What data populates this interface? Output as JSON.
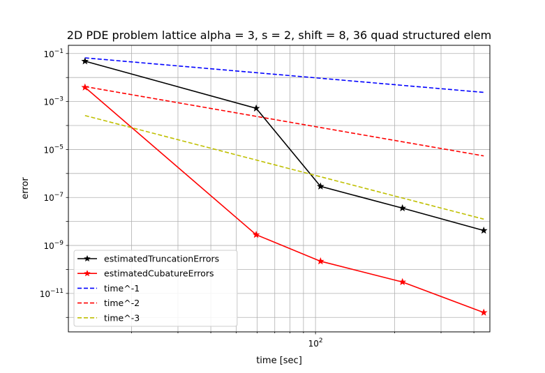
{
  "chart_data": {
    "type": "line",
    "title": "2D PDE problem lattice alpha = 3, s = 2, shift = 8, 36 quad structured elem",
    "xlabel": "time [sec]",
    "ylabel": "error",
    "xscale": "log",
    "yscale": "log",
    "xlim": [
      11.5,
      460
    ],
    "ylim": [
      2.5e-13,
      0.22
    ],
    "grid": true,
    "legend_position": "lower-left",
    "x_tick_labels": [
      {
        "value": 100,
        "label": "10^2"
      }
    ],
    "y_tick_labels": [
      {
        "value": 1e-11,
        "label": "10^-11"
      },
      {
        "value": 1e-09,
        "label": "10^-9"
      },
      {
        "value": 1e-07,
        "label": "10^-7"
      },
      {
        "value": 1e-05,
        "label": "10^-5"
      },
      {
        "value": 0.001,
        "label": "10^-3"
      },
      {
        "value": 0.1,
        "label": "10^-1"
      }
    ],
    "series": [
      {
        "name": "estimatedTruncationErrors",
        "color": "#000000",
        "style": "solid",
        "marker": "star",
        "x": [
          13.3,
          59.5,
          104.5,
          214,
          436
        ],
        "y": [
          0.048,
          0.00052,
          2.9e-07,
          3.6e-08,
          4.2e-09
        ]
      },
      {
        "name": "estimatedCubatureErrors",
        "color": "#ff0000",
        "style": "solid",
        "marker": "star",
        "x": [
          13.3,
          59.5,
          104.5,
          214,
          436
        ],
        "y": [
          0.0039,
          2.8e-09,
          2.2e-10,
          3e-11,
          1.6e-12
        ]
      },
      {
        "name": "time^-1",
        "color": "#0000ff",
        "style": "dashed",
        "marker": "none",
        "x": [
          13.3,
          436
        ],
        "y": [
          0.066,
          0.0024
        ]
      },
      {
        "name": "time^-2",
        "color": "#ff0000",
        "style": "dashed",
        "marker": "none",
        "x": [
          13.3,
          436
        ],
        "y": [
          0.0042,
          5.4e-06
        ]
      },
      {
        "name": "time^-3",
        "color": "#bfbf00",
        "style": "dashed",
        "marker": "none",
        "x": [
          13.3,
          436
        ],
        "y": [
          0.00026,
          1.25e-08
        ]
      }
    ]
  }
}
